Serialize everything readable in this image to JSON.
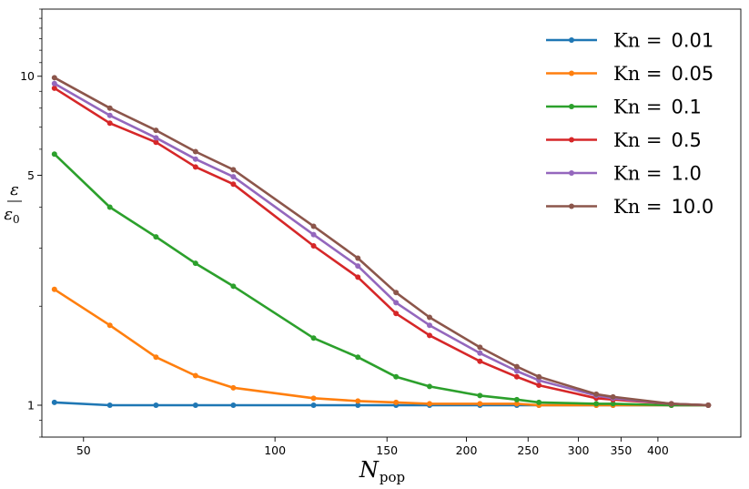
{
  "chart_data": {
    "type": "line",
    "x_scale": "log",
    "y_scale": "log",
    "xlim": [
      43,
      540
    ],
    "ylim": [
      0.8,
      16
    ],
    "x_ticks": [
      50,
      100,
      150,
      200,
      250,
      300,
      350,
      400
    ],
    "x_tick_labels": [
      "50",
      "100",
      "150",
      "200",
      "250",
      "300",
      "350",
      "400"
    ],
    "y_ticks": [
      1,
      5,
      10
    ],
    "y_tick_labels": [
      "1",
      "5",
      "10"
    ],
    "xlabel_main": "N",
    "xlabel_sub": "pop",
    "ylabel_num": "ε",
    "ylabel_den": "ε",
    "ylabel_den_sub": "0",
    "legend_position": "top-right",
    "legend_prefix": "Kn =",
    "grid": false,
    "series": [
      {
        "name": "0.01",
        "color": "#1f77b4",
        "x": [
          45,
          55,
          65,
          75,
          86,
          115,
          135,
          155,
          175,
          210,
          240,
          260,
          320,
          340,
          420,
          480
        ],
        "y": [
          1.02,
          1.0,
          1.0,
          1.0,
          1.0,
          1.0,
          1.0,
          1.0,
          1.0,
          1.0,
          1.0,
          1.0,
          1.0,
          1.0,
          1.0,
          1.0
        ]
      },
      {
        "name": "0.05",
        "color": "#ff7f0e",
        "x": [
          45,
          55,
          65,
          75,
          86,
          115,
          135,
          155,
          175,
          210,
          240,
          260,
          320,
          340,
          420,
          480
        ],
        "y": [
          2.25,
          1.75,
          1.4,
          1.23,
          1.13,
          1.05,
          1.03,
          1.02,
          1.01,
          1.01,
          1.01,
          1.0,
          1.0,
          1.0,
          1.0,
          1.0
        ]
      },
      {
        "name": "0.1",
        "color": "#2ca02c",
        "x": [
          45,
          55,
          65,
          75,
          86,
          115,
          135,
          155,
          175,
          210,
          240,
          260,
          320,
          340,
          420,
          480
        ],
        "y": [
          5.8,
          4.0,
          3.25,
          2.7,
          2.3,
          1.6,
          1.4,
          1.22,
          1.14,
          1.07,
          1.04,
          1.02,
          1.01,
          1.01,
          1.0,
          1.0
        ]
      },
      {
        "name": "0.5",
        "color": "#d62728",
        "x": [
          45,
          55,
          65,
          75,
          86,
          115,
          135,
          155,
          175,
          210,
          240,
          260,
          320,
          340,
          420,
          480
        ],
        "y": [
          9.2,
          7.2,
          6.3,
          5.3,
          4.7,
          3.05,
          2.45,
          1.9,
          1.63,
          1.36,
          1.22,
          1.15,
          1.05,
          1.04,
          1.01,
          1.0
        ]
      },
      {
        "name": "1.0",
        "color": "#9467bd",
        "x": [
          45,
          55,
          65,
          75,
          86,
          115,
          135,
          155,
          175,
          210,
          240,
          260,
          320,
          340,
          420,
          480
        ],
        "y": [
          9.5,
          7.6,
          6.5,
          5.6,
          4.95,
          3.3,
          2.65,
          2.05,
          1.75,
          1.44,
          1.27,
          1.19,
          1.07,
          1.05,
          1.01,
          1.0
        ]
      },
      {
        "name": "10.0",
        "color": "#8c564b",
        "x": [
          45,
          55,
          65,
          75,
          86,
          115,
          135,
          155,
          175,
          210,
          240,
          260,
          320,
          340,
          420,
          480
        ],
        "y": [
          9.9,
          8.0,
          6.85,
          5.9,
          5.2,
          3.5,
          2.8,
          2.2,
          1.85,
          1.5,
          1.31,
          1.22,
          1.08,
          1.06,
          1.01,
          1.0
        ]
      }
    ]
  }
}
